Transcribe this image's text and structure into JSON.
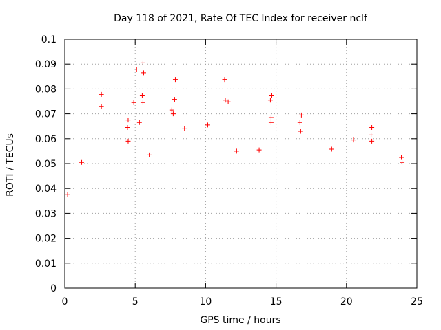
{
  "chart_data": {
    "type": "scatter",
    "title": "Day 118 of 2021, Rate Of TEC Index for receiver nclf",
    "xlabel": "GPS time / hours",
    "ylabel": "ROTI / TECUs",
    "xlim": [
      0,
      25
    ],
    "ylim": [
      0,
      0.1
    ],
    "xticks": [
      "0",
      "5",
      "10",
      "15",
      "20",
      "25"
    ],
    "yticks": [
      "0",
      "0.01",
      "0.02",
      "0.03",
      "0.04",
      "0.05",
      "0.06",
      "0.07",
      "0.08",
      "0.09",
      "0.1"
    ],
    "grid": true,
    "marker": "+",
    "color": "#ff0000",
    "series": [
      {
        "name": "ROTI",
        "points": [
          [
            2.6,
            0.0778
          ],
          [
            2.6,
            0.073
          ],
          [
            4.9,
            0.0745
          ],
          [
            5.1,
            0.088
          ],
          [
            5.55,
            0.0905
          ],
          [
            5.6,
            0.0865
          ],
          [
            5.5,
            0.0775
          ],
          [
            5.55,
            0.0745
          ],
          [
            7.85,
            0.0838
          ],
          [
            7.8,
            0.0758
          ],
          [
            7.6,
            0.0715
          ],
          [
            7.7,
            0.07
          ],
          [
            8.5,
            0.064
          ],
          [
            10.15,
            0.0655
          ],
          [
            11.35,
            0.0838
          ],
          [
            11.4,
            0.0755
          ],
          [
            11.6,
            0.0748
          ],
          [
            14.7,
            0.0775
          ],
          [
            14.6,
            0.0755
          ],
          [
            14.65,
            0.0685
          ],
          [
            14.65,
            0.0665
          ],
          [
            16.8,
            0.0695
          ],
          [
            16.7,
            0.0665
          ],
          [
            16.75,
            0.063
          ],
          [
            21.8,
            0.0645
          ],
          [
            21.75,
            0.0615
          ],
          [
            21.8,
            0.059
          ],
          [
            20.5,
            0.0595
          ],
          [
            18.95,
            0.0558
          ],
          [
            4.5,
            0.0675
          ],
          [
            4.45,
            0.0645
          ],
          [
            4.5,
            0.059
          ],
          [
            5.3,
            0.0665
          ],
          [
            6.0,
            0.0535
          ],
          [
            1.2,
            0.0505
          ],
          [
            23.9,
            0.0525
          ],
          [
            23.95,
            0.0505
          ],
          [
            13.8,
            0.0555
          ],
          [
            12.2,
            0.055
          ],
          [
            0.2,
            0.0375
          ]
        ]
      }
    ]
  }
}
